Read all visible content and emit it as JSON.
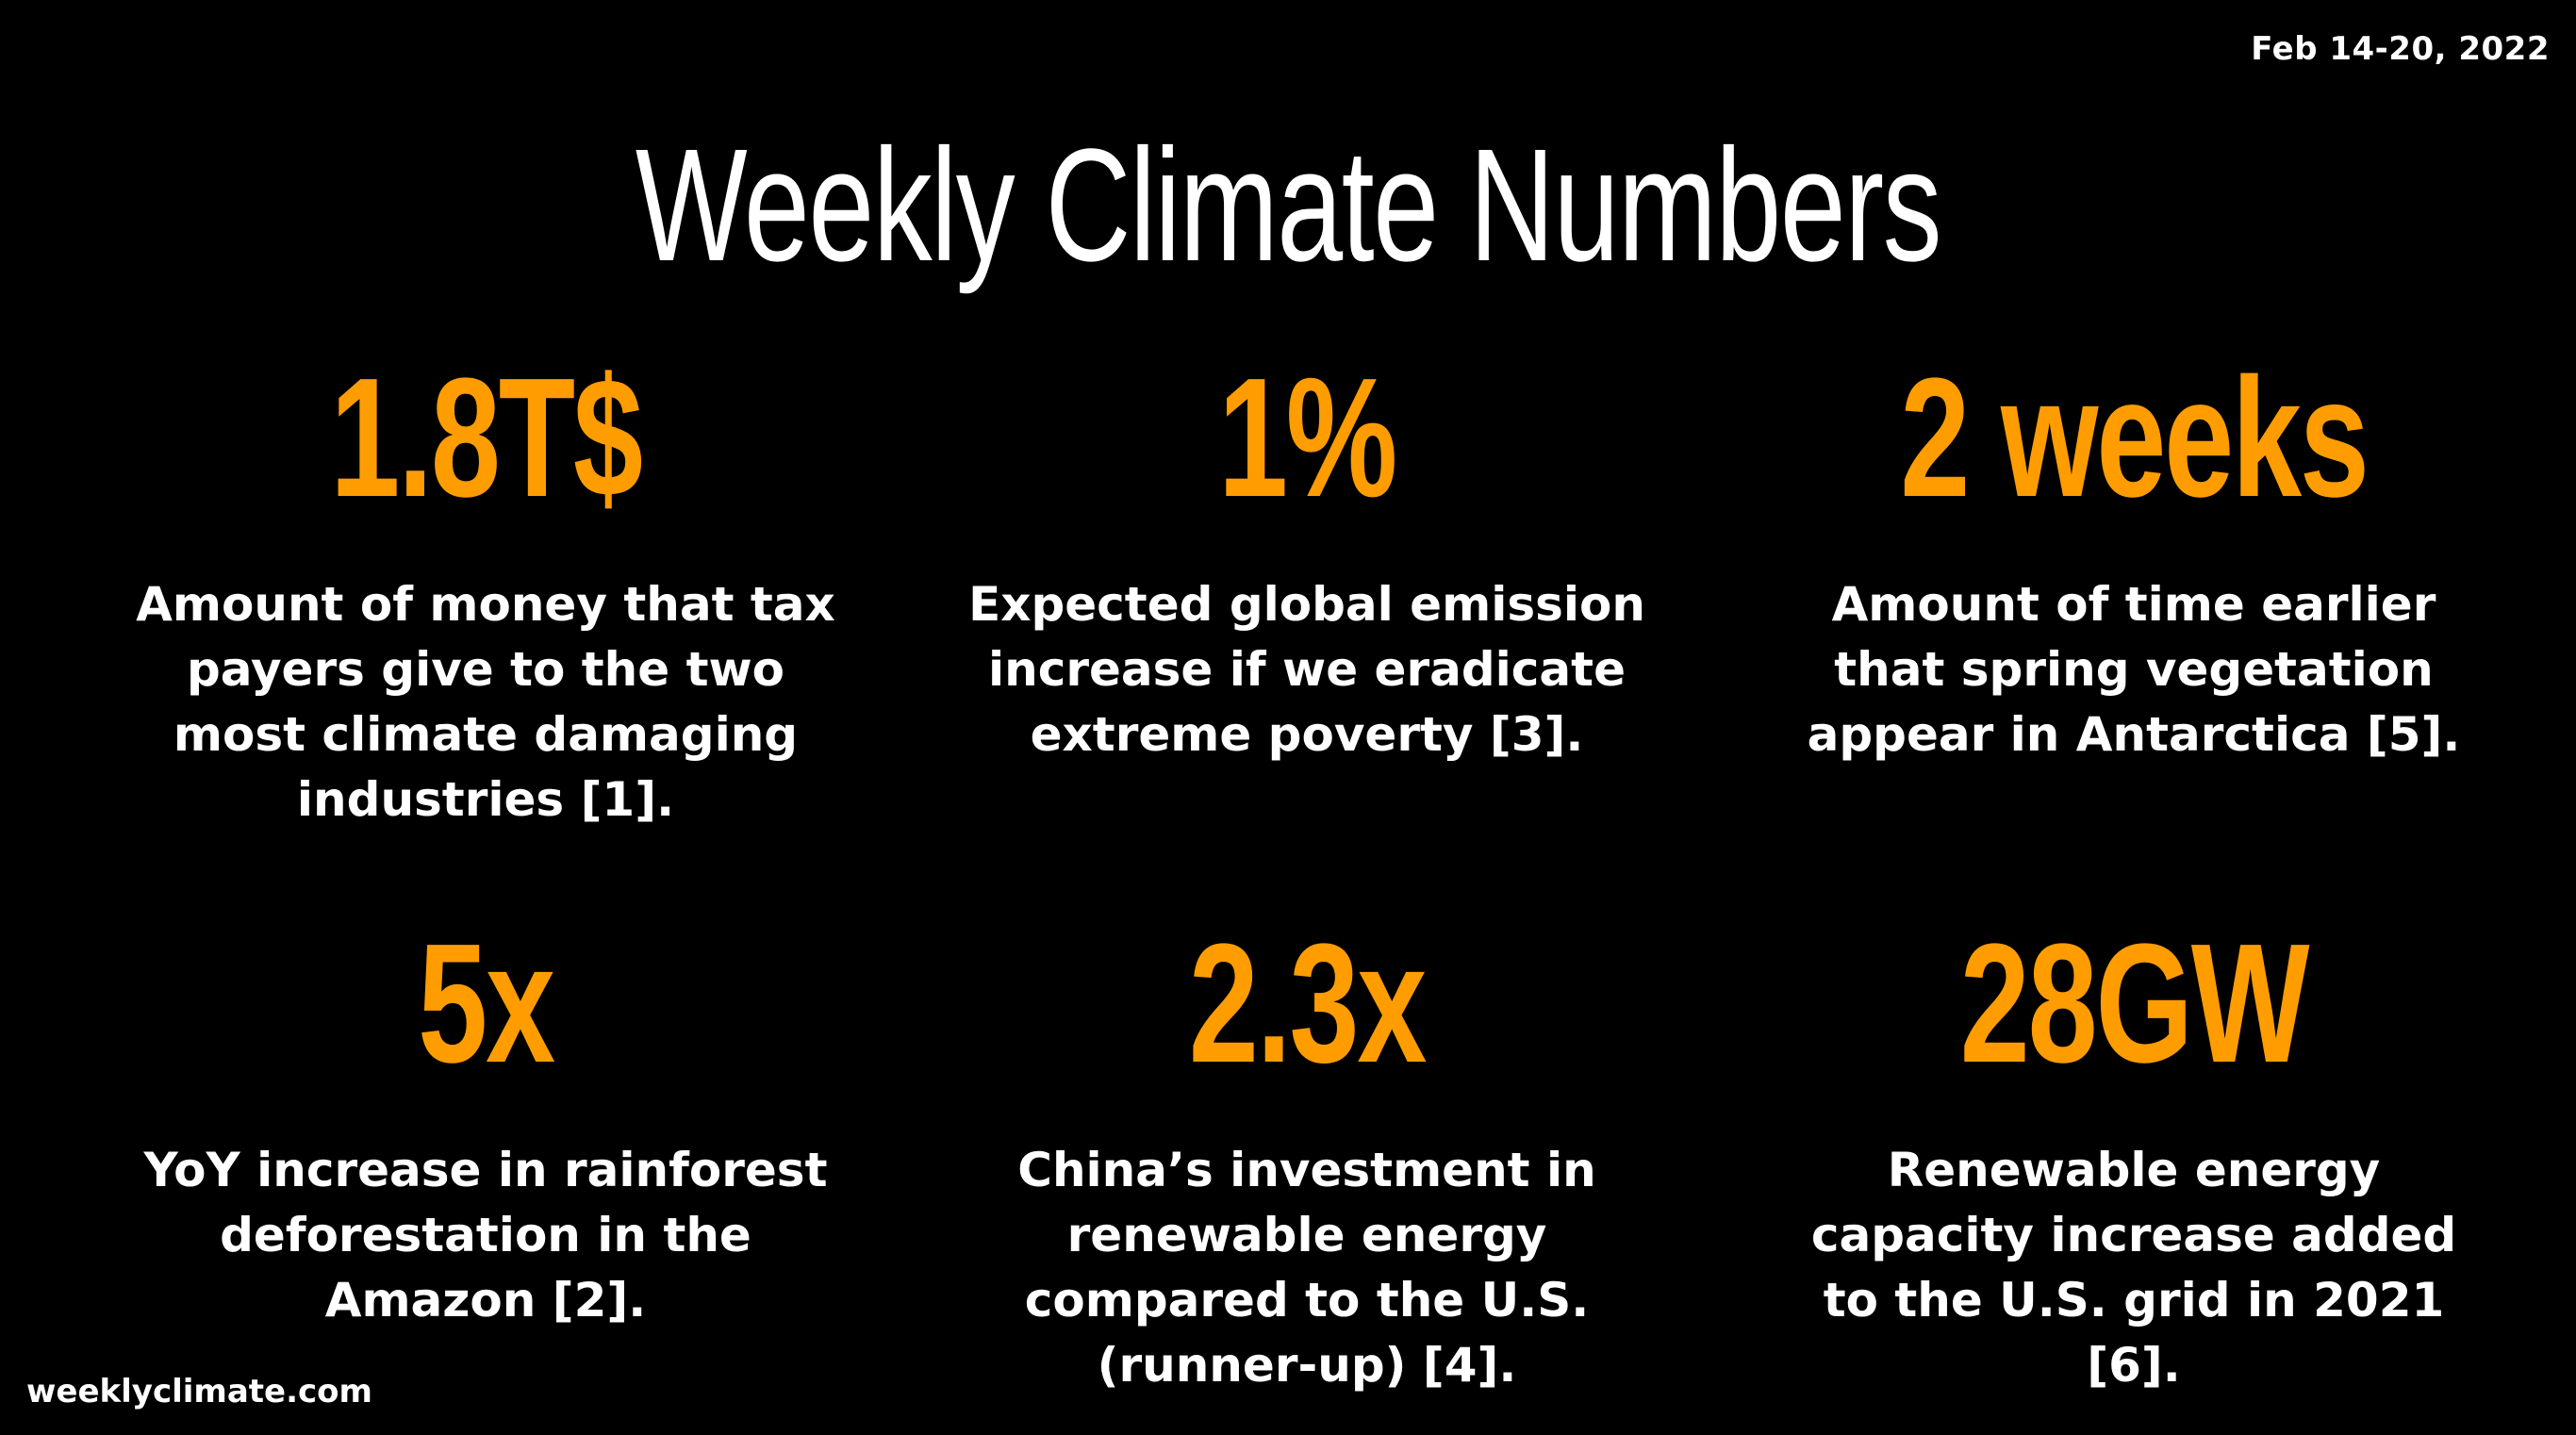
{
  "header": {
    "date": "Feb 14-20, 2022",
    "title": "Weekly Climate Numbers"
  },
  "accent_color": "#ff9d00",
  "stats": [
    {
      "value": "1.8T$",
      "description": "Amount of money that tax payers give to the two most climate damaging industries [1]."
    },
    {
      "value": "1%",
      "description": "Expected global emission increase if we eradicate extreme poverty [3]."
    },
    {
      "value": "2 weeks",
      "description": "Amount of time earlier that spring vegetation appear in Antarctica [5]."
    },
    {
      "value": "5x",
      "description": "YoY increase in rainforest deforestation in the Amazon [2]."
    },
    {
      "value": "2.3x",
      "description": "China’s investment in renewable energy compared to the U.S. (runner-up) [4]."
    },
    {
      "value": "28GW",
      "description": "Renewable energy capacity increase added to the U.S. grid in 2021 [6]."
    }
  ],
  "footer": {
    "site": "weeklyclimate.com"
  }
}
